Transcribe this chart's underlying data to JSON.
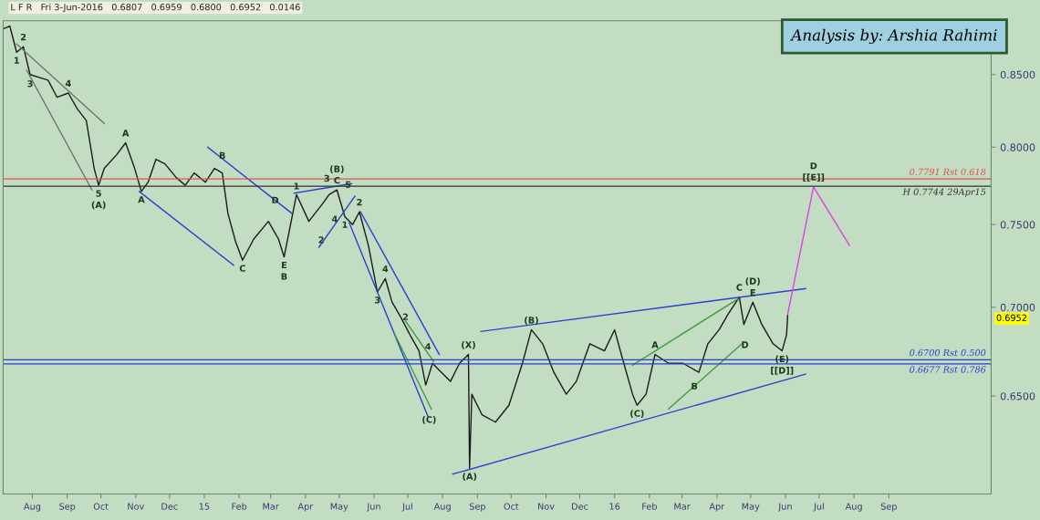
{
  "chart_data": {
    "type": "line",
    "subtitle": "L F R   Fri 3-Jun-2016   0.6807   0.6959   0.6800   0.6952   0.0146",
    "xlim": [
      "2014-07-06",
      "2016-12-01"
    ],
    "ylim": [
      0.599,
      0.889
    ],
    "log": true,
    "grid": false,
    "legend": false,
    "yticks": [
      {
        "value": 0.65,
        "label": "0.6500"
      },
      {
        "value": 0.7,
        "label": "0.7000"
      },
      {
        "value": 0.75,
        "label": "0.7500"
      },
      {
        "value": 0.8,
        "label": "0.8000"
      },
      {
        "value": 0.85,
        "label": "0.8500"
      }
    ],
    "xticks": [
      {
        "value": "2014-08-01",
        "label": "Aug"
      },
      {
        "value": "2014-09-01",
        "label": "Sep"
      },
      {
        "value": "2014-10-01",
        "label": "Oct"
      },
      {
        "value": "2014-11-01",
        "label": "Nov"
      },
      {
        "value": "2014-12-01",
        "label": "Dec"
      },
      {
        "value": "2015-01-01",
        "label": "15"
      },
      {
        "value": "2015-02-01",
        "label": "Feb"
      },
      {
        "value": "2015-03-01",
        "label": "Mar"
      },
      {
        "value": "2015-04-01",
        "label": "Apr"
      },
      {
        "value": "2015-05-01",
        "label": "May"
      },
      {
        "value": "2015-06-01",
        "label": "Jun"
      },
      {
        "value": "2015-07-01",
        "label": "Jul"
      },
      {
        "value": "2015-08-01",
        "label": "Aug"
      },
      {
        "value": "2015-09-01",
        "label": "Sep"
      },
      {
        "value": "2015-10-01",
        "label": "Oct"
      },
      {
        "value": "2015-11-01",
        "label": "Nov"
      },
      {
        "value": "2015-12-01",
        "label": "Dec"
      },
      {
        "value": "2016-01-01",
        "label": "16"
      },
      {
        "value": "2016-02-01",
        "label": "Feb"
      },
      {
        "value": "2016-03-01",
        "label": "Mar"
      },
      {
        "value": "2016-04-01",
        "label": "Apr"
      },
      {
        "value": "2016-05-01",
        "label": "May"
      },
      {
        "value": "2016-06-01",
        "label": "Jun"
      },
      {
        "value": "2016-07-01",
        "label": "Jul"
      },
      {
        "value": "2016-08-01",
        "label": "Aug"
      },
      {
        "value": "2016-09-01",
        "label": "Sep"
      }
    ],
    "series": [
      {
        "color": "#1a1a1a",
        "x": [
          "2014-07-06",
          "2014-07-12",
          "2014-07-18",
          "2014-07-24",
          "2014-07-30",
          "2014-08-07",
          "2014-08-15",
          "2014-08-23",
          "2014-09-02",
          "2014-09-10",
          "2014-09-18",
          "2014-09-25",
          "2014-09-29",
          "2014-10-04",
          "2014-10-15",
          "2014-10-23",
          "2014-10-31",
          "2014-11-06",
          "2014-11-12",
          "2014-11-19",
          "2014-11-27",
          "2014-12-07",
          "2014-12-15",
          "2014-12-23",
          "2015-01-02",
          "2015-01-10",
          "2015-01-17",
          "2015-01-22",
          "2015-01-29",
          "2015-02-04",
          "2015-02-14",
          "2015-02-27",
          "2015-03-08",
          "2015-03-13",
          "2015-03-24",
          "2015-04-04",
          "2015-04-16",
          "2015-04-22",
          "2015-04-29",
          "2015-05-06",
          "2015-05-13",
          "2015-05-19",
          "2015-05-27",
          "2015-06-04",
          "2015-06-11",
          "2015-06-17",
          "2015-06-25",
          "2015-07-03",
          "2015-07-11",
          "2015-07-17",
          "2015-07-23",
          "2015-07-31",
          "2015-08-08",
          "2015-08-16",
          "2015-08-24",
          "2015-08-25",
          "2015-08-27",
          "2015-09-05",
          "2015-09-17",
          "2015-09-29",
          "2015-10-11",
          "2015-10-19",
          "2015-10-29",
          "2015-11-08",
          "2015-11-19",
          "2015-11-28",
          "2015-12-10",
          "2015-12-23",
          "2016-01-01",
          "2016-01-07",
          "2016-01-17",
          "2016-01-21",
          "2016-01-29",
          "2016-02-06",
          "2016-02-18",
          "2016-03-02",
          "2016-03-16",
          "2016-03-24",
          "2016-04-03",
          "2016-04-11",
          "2016-04-21",
          "2016-04-25",
          "2016-05-03",
          "2016-05-11",
          "2016-05-21",
          "2016-05-29",
          "2016-06-02",
          "2016-06-03"
        ],
        "values": [
          0.883,
          0.885,
          0.866,
          0.87,
          0.85,
          0.848,
          0.846,
          0.834,
          0.837,
          0.826,
          0.818,
          0.786,
          0.775,
          0.786,
          0.795,
          0.803,
          0.786,
          0.771,
          0.777,
          0.792,
          0.789,
          0.78,
          0.775,
          0.783,
          0.777,
          0.786,
          0.783,
          0.757,
          0.739,
          0.728,
          0.741,
          0.752,
          0.741,
          0.73,
          0.769,
          0.752,
          0.763,
          0.769,
          0.772,
          0.755,
          0.75,
          0.758,
          0.737,
          0.709,
          0.717,
          0.703,
          0.694,
          0.684,
          0.675,
          0.656,
          0.668,
          0.663,
          0.658,
          0.668,
          0.673,
          0.612,
          0.651,
          0.64,
          0.636,
          0.645,
          0.668,
          0.687,
          0.679,
          0.663,
          0.651,
          0.658,
          0.679,
          0.675,
          0.687,
          0.673,
          0.651,
          0.645,
          0.651,
          0.673,
          0.668,
          0.668,
          0.663,
          0.679,
          0.687,
          0.696,
          0.706,
          0.69,
          0.703,
          0.69,
          0.679,
          0.675,
          0.684,
          0.6952
        ]
      },
      {
        "color": "#707070",
        "x": [
          "2014-07-18",
          "2014-10-04"
        ],
        "values": [
          0.872,
          0.816
        ]
      },
      {
        "color": "#707070",
        "x": [
          "2014-07-27",
          "2014-09-23"
        ],
        "values": [
          0.853,
          0.772
        ]
      },
      {
        "color": "#2b3fd0",
        "x": [
          "2014-11-04",
          "2015-01-27"
        ],
        "values": [
          0.771,
          0.725
        ]
      },
      {
        "color": "#2b3fd0",
        "x": [
          "2015-01-04",
          "2015-03-20"
        ],
        "values": [
          0.8,
          0.757
        ]
      },
      {
        "color": "#2b3fd0",
        "x": [
          "2015-03-22",
          "2015-05-12"
        ],
        "values": [
          0.77,
          0.776
        ]
      },
      {
        "color": "#2b3fd0",
        "x": [
          "2015-04-13",
          "2015-05-15"
        ],
        "values": [
          0.736,
          0.768
        ]
      },
      {
        "color": "#2b3fd0",
        "x": [
          "2015-05-10",
          "2015-07-19"
        ],
        "values": [
          0.751,
          0.639
        ]
      },
      {
        "color": "#2b3fd0",
        "x": [
          "2015-05-20",
          "2015-07-29"
        ],
        "values": [
          0.758,
          0.673
        ]
      },
      {
        "color": "#3f9a3f",
        "x": [
          "2015-06-19",
          "2015-07-22"
        ],
        "values": [
          0.685,
          0.643
        ]
      },
      {
        "color": "#3f9a3f",
        "x": [
          "2015-06-29",
          "2015-07-24"
        ],
        "values": [
          0.692,
          0.669
        ]
      },
      {
        "color": "#2b3fd0",
        "x": [
          "2015-09-04",
          "2016-06-19"
        ],
        "values": [
          0.686,
          0.711
        ]
      },
      {
        "color": "#2b3fd0",
        "x": [
          "2015-08-10",
          "2016-06-19"
        ],
        "values": [
          0.609,
          0.662
        ]
      },
      {
        "color": "#3f9a3f",
        "x": [
          "2016-01-17",
          "2016-04-20"
        ],
        "values": [
          0.667,
          0.705
        ]
      },
      {
        "color": "#3f9a3f",
        "x": [
          "2016-02-18",
          "2016-04-25"
        ],
        "values": [
          0.643,
          0.68
        ]
      },
      {
        "color": "#e040e0",
        "x": [
          "2016-06-03",
          "2016-06-26",
          "2016-07-28"
        ],
        "values": [
          0.696,
          0.774,
          0.737
        ]
      }
    ],
    "ref_lines": [
      {
        "axis": "y",
        "value": 0.7791,
        "label": "0.7791 Rst 0.618",
        "color": "#e05050"
      },
      {
        "axis": "y",
        "value": 0.7744,
        "label": "H 0.7744 29Apr15",
        "color": "#303030"
      },
      {
        "axis": "y",
        "value": 0.67,
        "label": "0.6700 Rst 0.500",
        "color": "#2b3fd0"
      },
      {
        "axis": "y",
        "value": 0.6677,
        "label": "0.6677 Rst 0.786",
        "color": "#2b3fd0"
      }
    ],
    "annotations": [
      "Analysis by: Arshia Rahimi",
      "0.6952",
      {
        "text": "1",
        "x": "2014-07-18",
        "y": 0.866
      },
      {
        "text": "2",
        "x": "2014-07-24",
        "y": 0.87
      },
      {
        "text": "3",
        "x": "2014-07-30",
        "y": 0.843
      },
      {
        "text": "4",
        "x": "2014-09-02",
        "y": 0.837
      },
      {
        "text": "5",
        "x": "2014-09-29",
        "y": 0.775
      },
      {
        "text": "(A)",
        "x": "2014-09-29",
        "y": 0.775
      },
      {
        "text": "A",
        "x": "2014-10-23",
        "y": 0.803
      },
      {
        "text": "A",
        "x": "2014-11-06",
        "y": 0.771
      },
      {
        "text": "B",
        "x": "2015-01-17",
        "y": 0.794
      },
      {
        "text": "C",
        "x": "2015-02-04",
        "y": 0.728
      },
      {
        "text": "D",
        "x": "2015-03-05",
        "y": 0.765
      },
      {
        "text": "E",
        "x": "2015-03-13",
        "y": 0.73
      },
      {
        "text": "B",
        "x": "2015-03-13",
        "y": 0.73
      },
      {
        "text": "5",
        "x": "2015-05-09",
        "y": 0.775
      },
      {
        "text": "C",
        "x": "2015-04-29",
        "y": 0.772
      },
      {
        "text": "(B)",
        "x": "2015-04-29",
        "y": 0.772
      },
      {
        "text": "1",
        "x": "2015-03-24",
        "y": 0.774
      },
      {
        "text": "3",
        "x": "2015-04-20",
        "y": 0.779
      },
      {
        "text": "2",
        "x": "2015-04-15",
        "y": 0.74
      },
      {
        "text": "4",
        "x": "2015-04-27",
        "y": 0.753
      },
      {
        "text": "1",
        "x": "2015-05-06",
        "y": 0.755
      },
      {
        "text": "2",
        "x": "2015-05-19",
        "y": 0.758
      },
      {
        "text": "3",
        "x": "2015-06-04",
        "y": 0.709
      },
      {
        "text": "4",
        "x": "2015-06-11",
        "y": 0.717
      },
      {
        "text": "2",
        "x": "2015-06-29",
        "y": 0.694
      },
      {
        "text": "4",
        "x": "2015-07-19",
        "y": 0.677
      },
      {
        "text": "(C)",
        "x": "2015-07-20",
        "y": 0.637
      },
      {
        "text": "(X)",
        "x": "2015-08-24",
        "y": 0.673
      },
      {
        "text": "(A)",
        "x": "2015-08-25",
        "y": 0.612
      },
      {
        "text": "(B)",
        "x": "2015-10-19",
        "y": 0.687
      },
      {
        "text": "(C)",
        "x": "2016-01-21",
        "y": 0.645
      },
      {
        "text": "A",
        "x": "2016-02-06",
        "y": 0.673
      },
      {
        "text": "B",
        "x": "2016-03-12",
        "y": 0.655
      },
      {
        "text": "C",
        "x": "2016-04-21",
        "y": 0.706
      },
      {
        "text": "D",
        "x": "2016-04-26",
        "y": 0.678
      },
      {
        "text": "E",
        "x": "2016-05-03",
        "y": 0.703
      },
      {
        "text": "(D)",
        "x": "2016-05-03",
        "y": 0.703
      },
      {
        "text": "(E)",
        "x": "2016-05-29",
        "y": 0.675
      },
      {
        "text": "[[D]]",
        "x": "2016-05-29",
        "y": 0.675
      },
      {
        "text": "[[E]]",
        "x": "2016-06-26",
        "y": 0.774
      },
      {
        "text": "D",
        "x": "2016-06-26",
        "y": 0.774
      }
    ]
  }
}
